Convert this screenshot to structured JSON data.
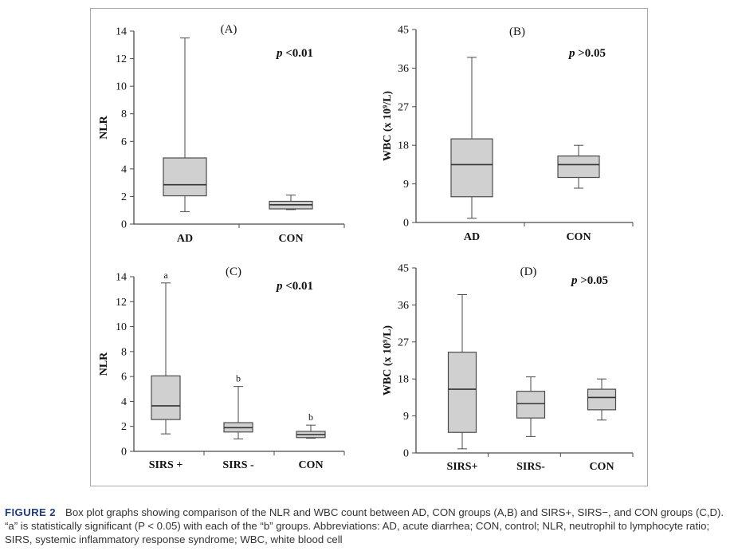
{
  "figure": {
    "label": "FIGURE 2",
    "caption": "Box plot graphs showing comparison of the NLR and WBC count between AD, CON groups (A,B) and SIRS+, SIRS−, and CON groups (C,D). “a” is statistically significant (P < 0.05) with each of the “b” groups. Abbreviations: AD, acute diarrhea; CON, control; NLR, neutrophil to lymphocyte ratio; SIRS, systemic inflammatory response syndrome; WBC, white blood cell"
  },
  "colors": {
    "box_fill": "#d0d0d0",
    "stroke": "#4a4a4a",
    "frame": "#a9a9a9"
  },
  "chart_data": [
    {
      "type": "box",
      "panel": "(A)",
      "annotation": "p <0.01",
      "ylabel": "NLR",
      "ylim": [
        0,
        14
      ],
      "yticks": [
        0,
        2,
        4,
        6,
        8,
        10,
        12,
        14
      ],
      "categories": [
        "AD",
        "CON"
      ],
      "boxes": [
        {
          "min": 0.9,
          "q1": 2.05,
          "median": 2.85,
          "q3": 4.8,
          "max": 13.5
        },
        {
          "min": 1.05,
          "q1": 1.1,
          "median": 1.4,
          "q3": 1.65,
          "max": 2.1
        }
      ],
      "letters": [
        "",
        ""
      ]
    },
    {
      "type": "box",
      "panel": "(B)",
      "annotation": "p >0.05",
      "ylabel": "WBC (x 10⁹/L)",
      "ylim": [
        0,
        45
      ],
      "yticks": [
        0,
        9,
        18,
        27,
        36,
        45
      ],
      "categories": [
        "AD",
        "CON"
      ],
      "boxes": [
        {
          "min": 1,
          "q1": 6,
          "median": 13.5,
          "q3": 19.5,
          "max": 38.5
        },
        {
          "min": 8,
          "q1": 10.5,
          "median": 13.5,
          "q3": 15.5,
          "max": 18
        }
      ],
      "letters": [
        "",
        ""
      ]
    },
    {
      "type": "box",
      "panel": "(C)",
      "annotation": "p <0.01",
      "ylabel": "NLR",
      "ylim": [
        0,
        14
      ],
      "yticks": [
        0,
        2,
        4,
        6,
        8,
        10,
        12,
        14
      ],
      "categories": [
        "SIRS +",
        "SIRS -",
        "CON"
      ],
      "boxes": [
        {
          "min": 1.4,
          "q1": 2.55,
          "median": 3.65,
          "q3": 6.05,
          "max": 13.5
        },
        {
          "min": 1.0,
          "q1": 1.55,
          "median": 1.9,
          "q3": 2.3,
          "max": 5.2
        },
        {
          "min": 1.05,
          "q1": 1.1,
          "median": 1.35,
          "q3": 1.6,
          "max": 2.1
        }
      ],
      "letters": [
        "a",
        "b",
        "b"
      ]
    },
    {
      "type": "box",
      "panel": "(D)",
      "annotation": "p >0.05",
      "ylabel": "WBC (x 10⁹/L)",
      "ylim": [
        0,
        45
      ],
      "yticks": [
        0,
        9,
        18,
        27,
        36,
        45
      ],
      "categories": [
        "SIRS+",
        "SIRS-",
        "CON"
      ],
      "boxes": [
        {
          "min": 1,
          "q1": 5,
          "median": 15.5,
          "q3": 24.5,
          "max": 38.5
        },
        {
          "min": 4,
          "q1": 8.5,
          "median": 12,
          "q3": 15,
          "max": 18.5
        },
        {
          "min": 8,
          "q1": 10.5,
          "median": 13.5,
          "q3": 15.5,
          "max": 18
        }
      ],
      "letters": [
        "",
        "",
        ""
      ]
    }
  ]
}
